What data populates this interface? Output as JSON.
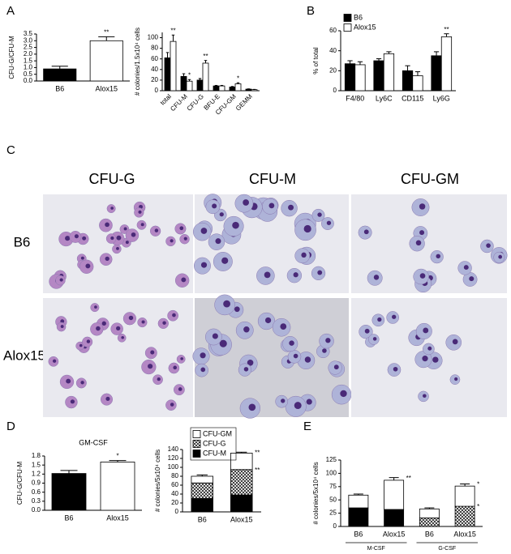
{
  "panels": [
    "A",
    "B",
    "C",
    "D",
    "E"
  ],
  "micrographs": {
    "columns": [
      "CFU-G",
      "CFU-M",
      "CFU-GM"
    ],
    "rows": [
      "B6",
      "Alox15"
    ]
  },
  "chart_data": [
    {
      "type": "bar",
      "ylabel": "CFU-G/CFU-M",
      "categories": [
        "B6",
        "Alox15"
      ],
      "values": [
        0.9,
        3.0
      ],
      "errors": [
        0.2,
        0.3
      ],
      "colors": [
        "#000000",
        "#ffffff"
      ],
      "ylim": [
        0,
        3.5
      ],
      "yticks": [
        {
          "value": 0,
          "label": "0.0"
        },
        0.5,
        {
          "value": 1,
          "label": "1.0"
        },
        1.5,
        {
          "value": 2,
          "label": "2.0"
        },
        2.5,
        {
          "value": 3,
          "label": "3.0"
        },
        3.5
      ],
      "annotations": [
        {
          "text": "**",
          "series": 0,
          "index": 1
        }
      ]
    },
    {
      "type": "bar",
      "ylabel": "# colonies/1.5x10⁴ cells",
      "categories": [
        "total",
        "CFU-M",
        "CFU-G",
        "BFU-E",
        "CFU-GM",
        "GEMM"
      ],
      "xtick_rotation": 45,
      "series": [
        {
          "name": "B6",
          "color": "#000000",
          "values": [
            62,
            27,
            20,
            9,
            7,
            3
          ],
          "errors": [
            10,
            5,
            3,
            1,
            1,
            0.5
          ]
        },
        {
          "name": "Alox15",
          "color": "#ffffff",
          "values": [
            93,
            18,
            52,
            9,
            13,
            2
          ],
          "errors": [
            12,
            3,
            5,
            1,
            2,
            0.5
          ]
        }
      ],
      "ylim": [
        0,
        110
      ],
      "yticks": [
        0,
        20,
        40,
        60,
        80,
        100
      ],
      "annotations": [
        {
          "text": "**",
          "series": 1,
          "index": 0
        },
        {
          "text": "*",
          "series": 1,
          "index": 1
        },
        {
          "text": "**",
          "series": 1,
          "index": 2
        },
        {
          "text": "*",
          "series": 1,
          "index": 4
        }
      ]
    },
    {
      "type": "bar",
      "ylabel": "% of total",
      "categories": [
        "F4/80",
        "Ly6C",
        "CD115",
        "Ly6G"
      ],
      "legend": "upper left",
      "series": [
        {
          "name": "B6",
          "color": "#000000",
          "values": [
            27,
            30,
            20,
            35
          ],
          "errors": [
            3,
            2,
            5,
            4
          ]
        },
        {
          "name": "Alox15",
          "color": "#ffffff",
          "values": [
            26,
            37,
            15,
            54
          ],
          "errors": [
            3,
            2,
            4,
            3
          ]
        }
      ],
      "ylim": [
        0,
        60
      ],
      "yticks": [
        0,
        20,
        40,
        60
      ],
      "annotations": [
        {
          "text": "**",
          "series": 1,
          "index": 3
        }
      ]
    },
    {
      "type": "bar",
      "title": "GM-CSF",
      "ylabel": "CFU-G/CFU-M",
      "categories": [
        "B6",
        "Alox15"
      ],
      "values": [
        1.22,
        1.6
      ],
      "errors": [
        0.1,
        0.05
      ],
      "colors": [
        "#000000",
        "#ffffff"
      ],
      "ylim": [
        0,
        1.8
      ],
      "yticks": [
        {
          "value": 0,
          "label": "0.0"
        },
        0.3,
        0.6,
        0.9,
        1.2,
        1.5,
        1.8
      ],
      "annotations": [
        {
          "text": "*",
          "series": 0,
          "index": 1
        }
      ]
    },
    {
      "type": "bar",
      "stacked": true,
      "ylabel": "# colonies/5x10⁴ cells",
      "categories": [
        "B6",
        "Alox15"
      ],
      "legend": "upper left",
      "series": [
        {
          "name": "CFU-M",
          "color": "#000000",
          "values": [
            30,
            38
          ]
        },
        {
          "name": "CFU-G",
          "color": "#ffffff",
          "hatch": true,
          "values": [
            35,
            57
          ]
        },
        {
          "name": "CFU-GM",
          "color": "#ffffff",
          "values": [
            15,
            37
          ],
          "errors": [
            3,
            2
          ]
        }
      ],
      "ylim": [
        0,
        140
      ],
      "yticks": [
        0,
        20,
        40,
        60,
        80,
        100,
        120,
        140
      ],
      "annotations": [
        {
          "text": "**",
          "series": 2,
          "index": 1
        },
        {
          "text": "**",
          "series": 1,
          "index": 1
        }
      ]
    },
    {
      "type": "bar",
      "stacked": true,
      "ylabel": "# colonies/5x10⁴ cells",
      "categories": [
        "B6",
        "Alox15",
        "B6",
        "Alox15"
      ],
      "groups": [
        "M-CSF",
        "G-CSF"
      ],
      "series": [
        {
          "colors": [
            "#000000",
            "#000000",
            "#ffffff",
            "#ffffff"
          ],
          "hatch": [
            false,
            false,
            true,
            true
          ],
          "values": [
            35,
            32,
            16,
            38
          ]
        },
        {
          "color": "#ffffff",
          "values": [
            24,
            55,
            17,
            38
          ],
          "errors": [
            2,
            5,
            2,
            4
          ]
        }
      ],
      "ylim": [
        0,
        125
      ],
      "yticks": [
        0,
        25,
        50,
        75,
        100,
        125
      ],
      "annotations": [
        {
          "text": "**",
          "series": 1,
          "index": 1
        },
        {
          "text": "*",
          "series": 1,
          "index": 3
        },
        {
          "text": "*",
          "series": 0,
          "index": 3
        }
      ]
    }
  ]
}
